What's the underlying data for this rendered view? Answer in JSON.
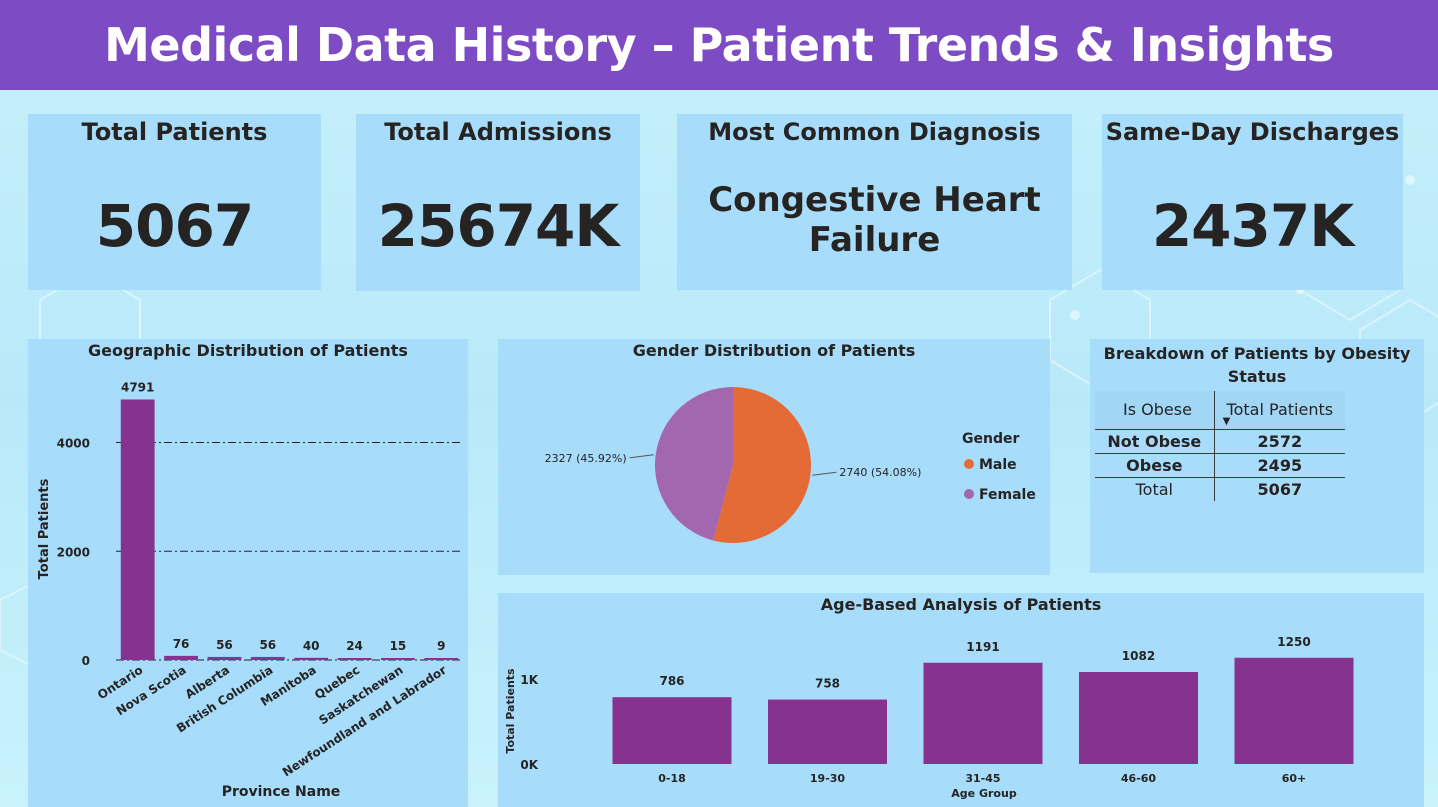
{
  "header": {
    "title": "Medical Data History – Patient Trends & Insights"
  },
  "kpis": {
    "total_patients": {
      "label": "Total Patients",
      "value": "5067"
    },
    "total_admissions": {
      "label": "Total Admissions",
      "value": "25674K"
    },
    "common_diagnosis": {
      "label": "Most Common Diagnosis",
      "line1": "Congestive Heart",
      "line2": "Failure"
    },
    "same_day": {
      "label": "Same-Day Discharges",
      "value": "2437K"
    }
  },
  "geo": {
    "title": "Geographic Distribution of Patients"
  },
  "gender": {
    "title": "Gender Distribution of Patients"
  },
  "obesity": {
    "title_line1": "Breakdown of Patients by Obesity",
    "title_line2": "Status",
    "col1": "Is Obese",
    "col2": "Total Patients",
    "sort_icon": "sort-down-icon",
    "rows": [
      {
        "label": "Not Obese",
        "value": "2572"
      },
      {
        "label": "Obese",
        "value": "2495"
      }
    ],
    "total_label": "Total",
    "total_value": "5067"
  },
  "age": {
    "title": "Age-Based Analysis of Patients"
  },
  "colors": {
    "title_bar": "#7d4cc5",
    "card": "#a8dcfb",
    "bar": "#86328f",
    "male": "#e56b36",
    "female": "#a367b0"
  },
  "chart_data": [
    {
      "type": "bar",
      "title": "Geographic Distribution of Patients",
      "xlabel": "Province Name",
      "ylabel": "Total Patients",
      "categories": [
        "Ontario",
        "Nova Scotia",
        "Alberta",
        "British Columbia",
        "Manitoba",
        "Quebec",
        "Saskatchewan",
        "Newfoundland and Labrador"
      ],
      "values": [
        4791,
        76,
        56,
        56,
        40,
        24,
        15,
        9
      ],
      "yticks": [
        "0",
        "2000",
        "4000"
      ],
      "ylim": [
        0,
        4800
      ],
      "grid": true
    },
    {
      "type": "pie",
      "title": "Gender Distribution of Patients",
      "legend_title": "Gender",
      "legend_position": "right",
      "slices": [
        {
          "name": "Male",
          "value": 2740,
          "label": "2740 (54.08%)"
        },
        {
          "name": "Female",
          "value": 2327,
          "label": "2327 (45.92%)"
        }
      ]
    },
    {
      "type": "bar",
      "title": "Age-Based Analysis of Patients",
      "xlabel": "Age Group",
      "ylabel": "Total Patients",
      "categories": [
        "0-18",
        "19-30",
        "31-45",
        "46-60",
        "60+"
      ],
      "values": [
        786,
        758,
        1191,
        1082,
        1250
      ],
      "yticks": [
        "0K",
        "1K"
      ],
      "ylim": [
        0,
        1300
      ],
      "grid": false
    }
  ]
}
